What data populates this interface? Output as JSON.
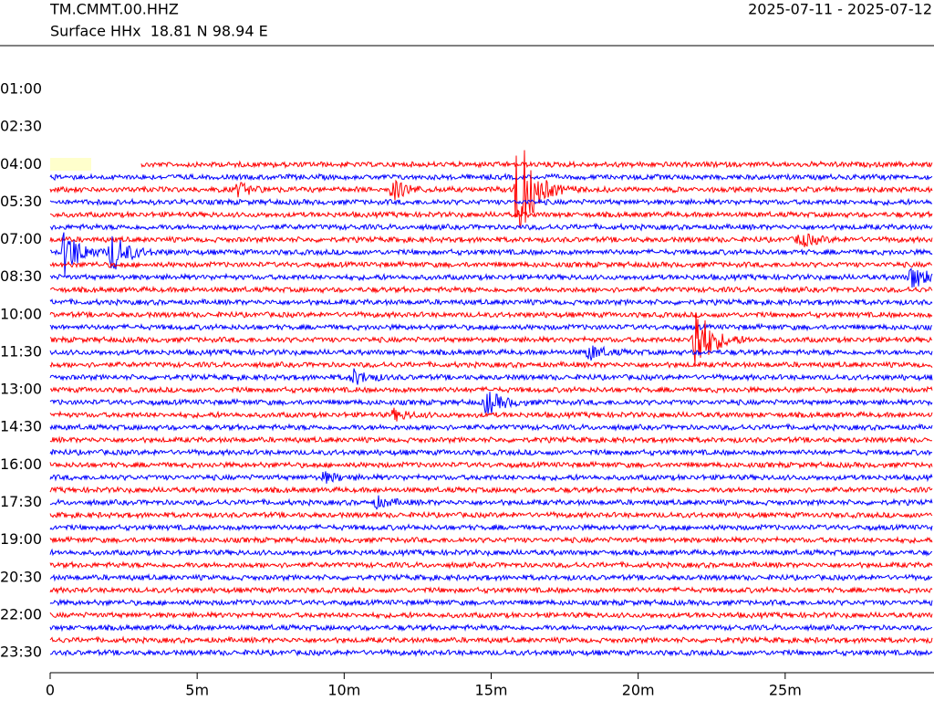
{
  "chart_data": {
    "type": "helicorder",
    "title": "TM.CMMT.00.HHZ",
    "subtitle": "Surface HHx  18.81 N 98.94 E",
    "date_range": "2025-07-11 - 2025-07-12",
    "xlim": [
      0,
      30
    ],
    "xticks": [
      0,
      {
        "value": 5,
        "label": "5m"
      },
      {
        "value": 10,
        "label": "10m"
      },
      {
        "value": 15,
        "label": "15m"
      },
      {
        "value": 20,
        "label": "20m"
      },
      {
        "value": 25,
        "label": "25m"
      }
    ],
    "ylim": [
      -0.75,
      24.3
    ],
    "yticks": [
      {
        "value": 1,
        "label": "01:00"
      },
      {
        "value": 2.5,
        "label": "02:30"
      },
      {
        "value": 4,
        "label": "04:00"
      },
      {
        "value": 5.5,
        "label": "05:30"
      },
      {
        "value": 7,
        "label": "07:00"
      },
      {
        "value": 8.5,
        "label": "08:30"
      },
      {
        "value": 10,
        "label": "10:00"
      },
      {
        "value": 11.5,
        "label": "11:30"
      },
      {
        "value": 13,
        "label": "13:00"
      },
      {
        "value": 14.5,
        "label": "14:30"
      },
      {
        "value": 16,
        "label": "16:00"
      },
      {
        "value": 17.5,
        "label": "17:30"
      },
      {
        "value": 19,
        "label": "19:00"
      },
      {
        "value": 20.5,
        "label": "20:30"
      },
      {
        "value": 22,
        "label": "22:00"
      },
      {
        "value": 23.5,
        "label": "23:30"
      }
    ],
    "colors": [
      "#ff0000",
      "#0000ff"
    ],
    "trace_start_minute": 3.1,
    "trace_hours": [
      4,
      4.5,
      5,
      5.5,
      6,
      6.5,
      7,
      7.5,
      8,
      8.5,
      9,
      9.5,
      10,
      10.5,
      11,
      11.5,
      12,
      12.5,
      13,
      13.5,
      14,
      14.5,
      15,
      15.5,
      16,
      16.5,
      17,
      17.5,
      18,
      18.5,
      19,
      19.5,
      20,
      20.5,
      21,
      21.5,
      22,
      22.5,
      23,
      23.5
    ],
    "noise_amplitude": 0.12,
    "events": [
      {
        "hour": 5,
        "minute": 15.9,
        "amplitude": 2.6
      },
      {
        "hour": 5,
        "minute": 11.65,
        "amplitude": 0.4
      },
      {
        "hour": 5,
        "minute": 6.4,
        "amplitude": 0.25
      },
      {
        "hour": 7,
        "minute": 25.5,
        "amplitude": 0.3
      },
      {
        "hour": 7.5,
        "minute": 0.5,
        "amplitude": 1.0
      },
      {
        "hour": 7.5,
        "minute": 2.1,
        "amplitude": 0.8
      },
      {
        "hour": 8.5,
        "minute": 29.3,
        "amplitude": 0.5
      },
      {
        "hour": 11,
        "minute": 21.9,
        "amplitude": 1.7
      },
      {
        "hour": 11.5,
        "minute": 18.3,
        "amplitude": 0.3
      },
      {
        "hour": 12.5,
        "minute": 10.3,
        "amplitude": 0.3
      },
      {
        "hour": 13.5,
        "minute": 14.85,
        "amplitude": 0.5
      },
      {
        "hour": 14,
        "minute": 11.7,
        "amplitude": 0.2
      },
      {
        "hour": 16.5,
        "minute": 9.3,
        "amplitude": 0.2
      },
      {
        "hour": 17.5,
        "minute": 11.1,
        "amplitude": 0.2
      }
    ]
  }
}
